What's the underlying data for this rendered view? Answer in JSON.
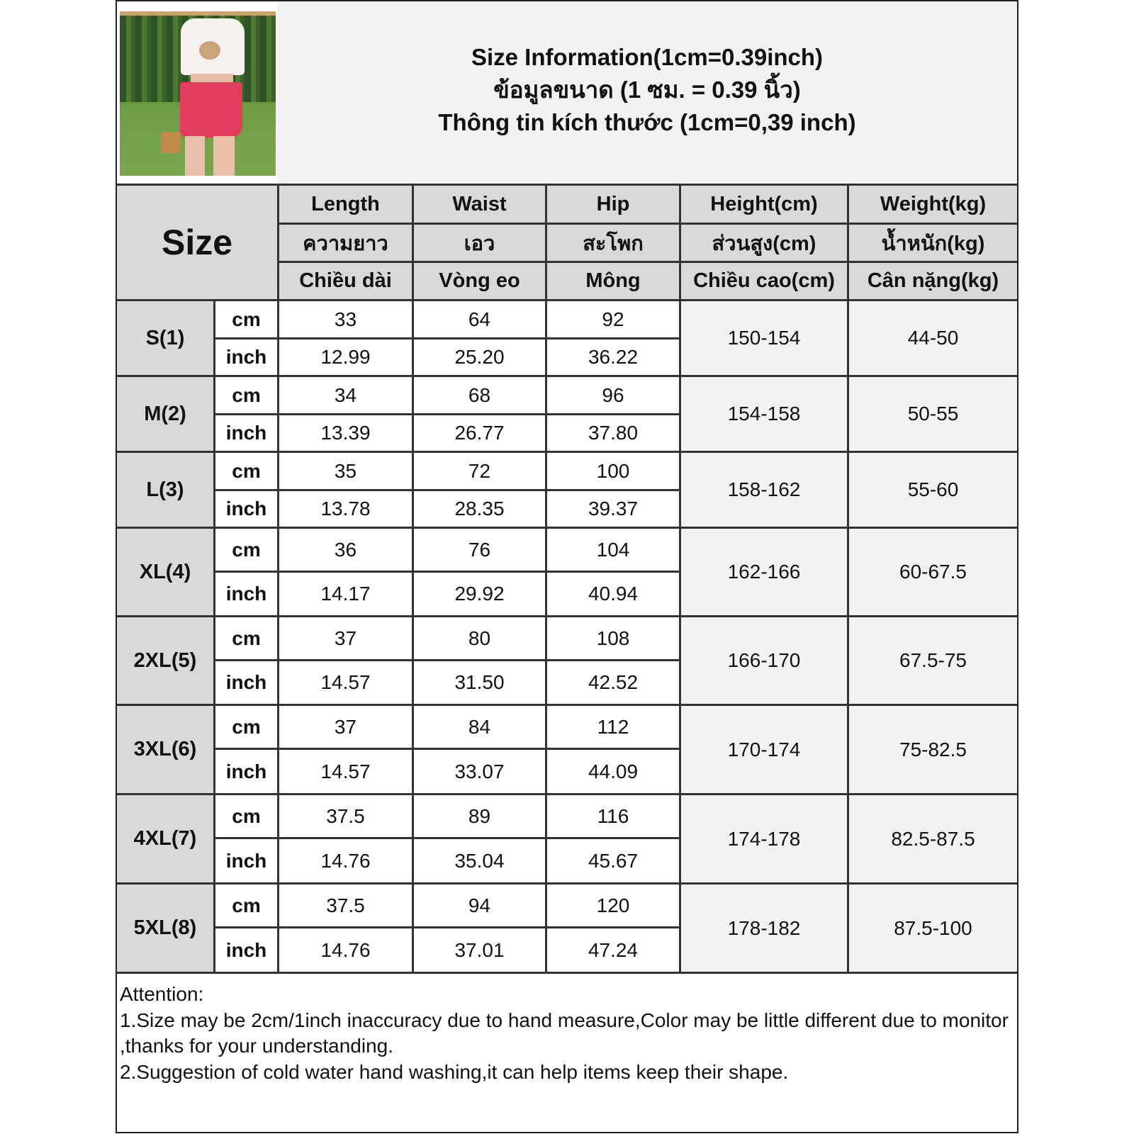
{
  "title": {
    "line1": "Size Information(1cm=0.39inch)",
    "line2": "ข้อมูลขนาด (1 ซม. = 0.39 นิ้ว)",
    "line3": "Thông tin kích thước (1cm=0,39 inch)"
  },
  "size_header": "Size",
  "columns": [
    {
      "en": "Length",
      "th": "ความยาว",
      "vi": "Chiều dài"
    },
    {
      "en": "Waist",
      "th": "เอว",
      "vi": "Vòng eo"
    },
    {
      "en": "Hip",
      "th": "สะโพก",
      "vi": "Mông"
    },
    {
      "en": "Height(cm)",
      "th": "ส่วนสูง(cm)",
      "vi": "Chiều cao(cm)"
    },
    {
      "en": "Weight(kg)",
      "th": "น้ำหนัก(kg)",
      "vi": "Cân nặng(kg)"
    }
  ],
  "units": {
    "cm": "cm",
    "inch": "inch"
  },
  "rows": [
    {
      "size": "S(1)",
      "cm": [
        "33",
        "64",
        "92"
      ],
      "inch": [
        "12.99",
        "25.20",
        "36.22"
      ],
      "height": "150-154",
      "weight": "44-50"
    },
    {
      "size": "M(2)",
      "cm": [
        "34",
        "68",
        "96"
      ],
      "inch": [
        "13.39",
        "26.77",
        "37.80"
      ],
      "height": "154-158",
      "weight": "50-55"
    },
    {
      "size": "L(3)",
      "cm": [
        "35",
        "72",
        "100"
      ],
      "inch": [
        "13.78",
        "28.35",
        "39.37"
      ],
      "height": "158-162",
      "weight": "55-60"
    },
    {
      "size": "XL(4)",
      "cm": [
        "36",
        "76",
        "104"
      ],
      "inch": [
        "14.17",
        "29.92",
        "40.94"
      ],
      "height": "162-166",
      "weight": "60-67.5"
    },
    {
      "size": "2XL(5)",
      "cm": [
        "37",
        "80",
        "108"
      ],
      "inch": [
        "14.57",
        "31.50",
        "42.52"
      ],
      "height": "166-170",
      "weight": "67.5-75"
    },
    {
      "size": "3XL(6)",
      "cm": [
        "37",
        "84",
        "112"
      ],
      "inch": [
        "14.57",
        "33.07",
        "44.09"
      ],
      "height": "170-174",
      "weight": "75-82.5"
    },
    {
      "size": "4XL(7)",
      "cm": [
        "37.5",
        "89",
        "116"
      ],
      "inch": [
        "14.76",
        "35.04",
        "45.67"
      ],
      "height": "174-178",
      "weight": "82.5-87.5"
    },
    {
      "size": "5XL(8)",
      "cm": [
        "37.5",
        "94",
        "120"
      ],
      "inch": [
        "14.76",
        "37.01",
        "47.24"
      ],
      "height": "178-182",
      "weight": "87.5-100"
    }
  ],
  "attention": {
    "heading": "Attention:",
    "note1": "1.Size may be 2cm/1inch inaccuracy due to hand measure,Color may be little different due to monitor ,thanks for your understanding.",
    "note2": "2.Suggestion of cold water hand washing,it can help items keep their shape."
  },
  "colors": {
    "header_gray": "#d9d9d9",
    "light_gray": "#f2f2f2",
    "border": "#333333"
  }
}
